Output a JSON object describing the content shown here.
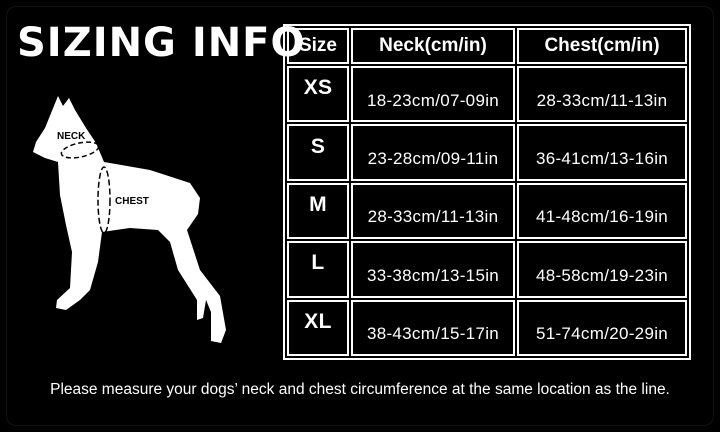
{
  "title": "SIZING INFO",
  "diagram": {
    "neck_label": "NECK",
    "chest_label": "CHEST"
  },
  "table": {
    "headers": [
      "Size",
      "Neck(cm/in)",
      "Chest(cm/in)"
    ],
    "rows": [
      [
        "XS",
        "18-23cm/07-09in",
        "28-33cm/11-13in"
      ],
      [
        "S",
        "23-28cm/09-11in",
        "36-41cm/13-16in"
      ],
      [
        "M",
        "28-33cm/11-13in",
        "41-48cm/16-19in"
      ],
      [
        "L",
        "33-38cm/13-15in",
        "48-58cm/19-23in"
      ],
      [
        "XL",
        "38-43cm/15-17in",
        "51-74cm/20-29in"
      ]
    ]
  },
  "footer": "Please measure your dogs’  neck and chest circumference at the same location as the line.",
  "colors": {
    "background": "#000000",
    "foreground": "#ffffff"
  }
}
